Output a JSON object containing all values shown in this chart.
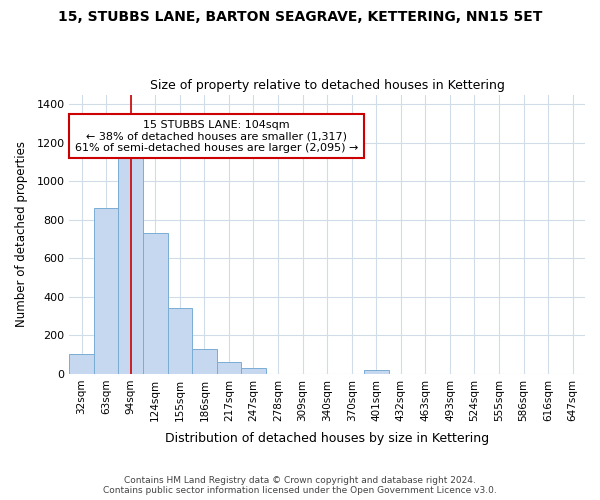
{
  "title": "15, STUBBS LANE, BARTON SEAGRAVE, KETTERING, NN15 5ET",
  "subtitle": "Size of property relative to detached houses in Kettering",
  "xlabel": "Distribution of detached houses by size in Kettering",
  "ylabel": "Number of detached properties",
  "categories": [
    "32sqm",
    "63sqm",
    "94sqm",
    "124sqm",
    "155sqm",
    "186sqm",
    "217sqm",
    "247sqm",
    "278sqm",
    "309sqm",
    "340sqm",
    "370sqm",
    "401sqm",
    "432sqm",
    "463sqm",
    "493sqm",
    "524sqm",
    "555sqm",
    "586sqm",
    "616sqm",
    "647sqm"
  ],
  "values": [
    105,
    860,
    1145,
    730,
    340,
    130,
    60,
    30,
    0,
    0,
    0,
    0,
    20,
    0,
    0,
    0,
    0,
    0,
    0,
    0,
    0
  ],
  "bar_color": "#c5d8f0",
  "bar_edge_color": "#7aadd4",
  "annotation_text_line1": "15 STUBBS LANE: 104sqm",
  "annotation_text_line2": "← 38% of detached houses are smaller (1,317)",
  "annotation_text_line3": "61% of semi-detached houses are larger (2,095) →",
  "annotation_box_facecolor": "white",
  "annotation_box_edgecolor": "#cc0000",
  "vline_color": "#cc0000",
  "vline_x": 2.0,
  "background_color": "#ffffff",
  "plot_bg_color": "#ffffff",
  "footer_line1": "Contains HM Land Registry data © Crown copyright and database right 2024.",
  "footer_line2": "Contains public sector information licensed under the Open Government Licence v3.0.",
  "ylim": [
    0,
    1450
  ],
  "yticks": [
    0,
    200,
    400,
    600,
    800,
    1000,
    1200,
    1400
  ],
  "grid_color": "#d0dce8"
}
